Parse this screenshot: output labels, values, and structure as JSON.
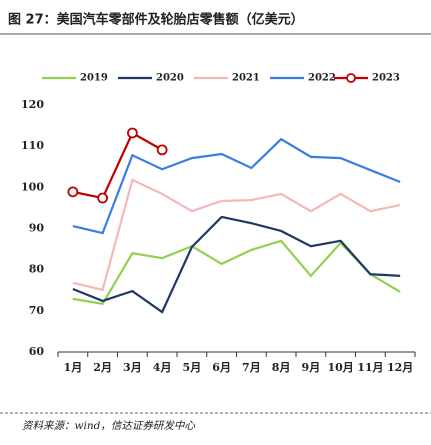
{
  "chart_data": {
    "type": "line",
    "title": "图 27：美国汽车零部件及轮胎店零售额（亿美元）",
    "source": "资料来源：wind，信达证券研发中心",
    "categories": [
      "1月",
      "2月",
      "3月",
      "4月",
      "5月",
      "6月",
      "7月",
      "8月",
      "9月",
      "10月",
      "11月",
      "12月"
    ],
    "series": [
      {
        "name": "2019",
        "color": "#92d050",
        "values": [
          72.9,
          71.7,
          84.0,
          82.8,
          85.7,
          81.4,
          84.8,
          87.0,
          78.5,
          86.5,
          78.9,
          74.6
        ]
      },
      {
        "name": "2020",
        "color": "#1f3864",
        "values": [
          75.3,
          72.4,
          74.8,
          69.7,
          85.5,
          92.8,
          91.3,
          89.4,
          85.7,
          87.0,
          78.9,
          78.5
        ]
      },
      {
        "name": "2021",
        "color": "#f4b8b8",
        "values": [
          76.8,
          75.1,
          101.8,
          98.4,
          94.2,
          96.7,
          96.9,
          98.4,
          94.2,
          98.4,
          94.2,
          95.7
        ]
      },
      {
        "name": "2022",
        "color": "#3c7ee0",
        "values": [
          90.6,
          88.9,
          107.8,
          104.4,
          107.1,
          108.1,
          104.7,
          111.7,
          107.4,
          107.1,
          104.2,
          101.3
        ]
      },
      {
        "name": "2023",
        "color": "#c00000",
        "marker": "circle",
        "values": [
          98.9,
          97.4,
          113.2,
          109.1,
          null,
          null,
          null,
          null,
          null,
          null,
          null,
          null
        ]
      }
    ],
    "ylim": [
      60,
      120
    ],
    "yticks": [
      60,
      70,
      80,
      90,
      100,
      110,
      120
    ],
    "grid": false
  }
}
